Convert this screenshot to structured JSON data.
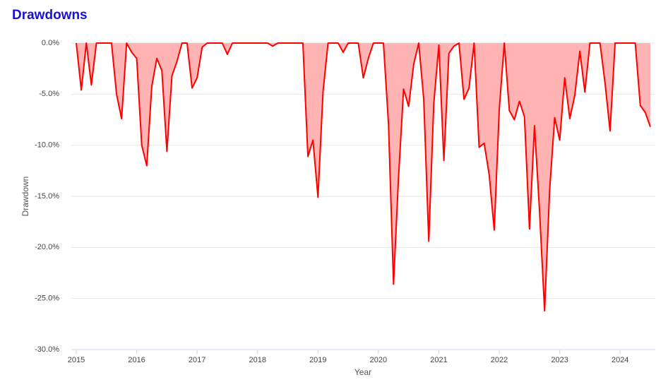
{
  "chart_data": {
    "type": "area",
    "title": "Drawdowns",
    "xlabel": "Year",
    "ylabel": "Drawdown",
    "categories": [
      "2015",
      null,
      null,
      null,
      null,
      null,
      null,
      null,
      null,
      null,
      null,
      null,
      "2016",
      null,
      null,
      null,
      null,
      null,
      null,
      null,
      null,
      null,
      null,
      null,
      "2017",
      null,
      null,
      null,
      null,
      null,
      null,
      null,
      null,
      null,
      null,
      null,
      "2018",
      null,
      null,
      null,
      null,
      null,
      null,
      null,
      null,
      null,
      null,
      null,
      "2019",
      null,
      null,
      null,
      null,
      null,
      null,
      null,
      null,
      null,
      null,
      null,
      "2020",
      null,
      null,
      null,
      null,
      null,
      null,
      null,
      null,
      null,
      null,
      null,
      "2021",
      null,
      null,
      null,
      null,
      null,
      null,
      null,
      null,
      null,
      null,
      null,
      "2022",
      null,
      null,
      null,
      null,
      null,
      null,
      null,
      null,
      null,
      null,
      null,
      "2023",
      null,
      null,
      null,
      null,
      null,
      null,
      null,
      null,
      null,
      null,
      null,
      "2024",
      null,
      null,
      null,
      null,
      null,
      null
    ],
    "values": [
      0,
      -4.6,
      0,
      -4.1,
      0,
      0,
      0,
      0,
      -5.0,
      -7.4,
      0,
      -0.9,
      -1.5,
      -10.0,
      -12.0,
      -4.2,
      -1.5,
      -2.7,
      -10.6,
      -3.2,
      -1.8,
      0,
      0,
      -4.4,
      -3.4,
      -0.4,
      0,
      0,
      0,
      0,
      -1.1,
      0,
      0,
      0,
      0,
      0,
      0,
      0,
      0,
      -0.3,
      0,
      0,
      0,
      0,
      0,
      0,
      -11.1,
      -9.5,
      -15.1,
      -4.8,
      0,
      0,
      0,
      -0.9,
      0,
      0,
      0,
      -3.4,
      -1.5,
      0,
      0,
      0,
      -7.9,
      -23.6,
      -13.1,
      -4.5,
      -6.2,
      -2.1,
      0,
      -5.5,
      -19.4,
      -5.9,
      -0.2,
      -11.5,
      -1.0,
      -0.3,
      0,
      -5.5,
      -4.4,
      0,
      -10.2,
      -9.8,
      -12.9,
      -18.3,
      -6.5,
      0,
      -6.6,
      -7.5,
      -5.7,
      -7.2,
      -18.2,
      -8.1,
      -16.5,
      -26.2,
      -14.4,
      -7.3,
      -9.5,
      -3.4,
      -7.4,
      -5.1,
      -0.8,
      -4.8,
      0,
      0,
      0,
      -3.9,
      -8.6,
      0,
      0,
      0,
      0,
      0,
      -6.1,
      -6.8,
      -8.2
    ],
    "color": "#ff0000",
    "fill_color": "#ffb3b3",
    "ylim": [
      -30,
      0
    ],
    "yticks": [
      {
        "value": 0,
        "label": "0.0%"
      },
      {
        "value": -5,
        "label": "-5.0%"
      },
      {
        "value": -10,
        "label": "-10.0%"
      },
      {
        "value": -15,
        "label": "-15.0%"
      },
      {
        "value": -20,
        "label": "-20.0%"
      },
      {
        "value": -25,
        "label": "-25.0%"
      },
      {
        "value": -30,
        "label": "-30.0%"
      }
    ],
    "grid": true
  }
}
